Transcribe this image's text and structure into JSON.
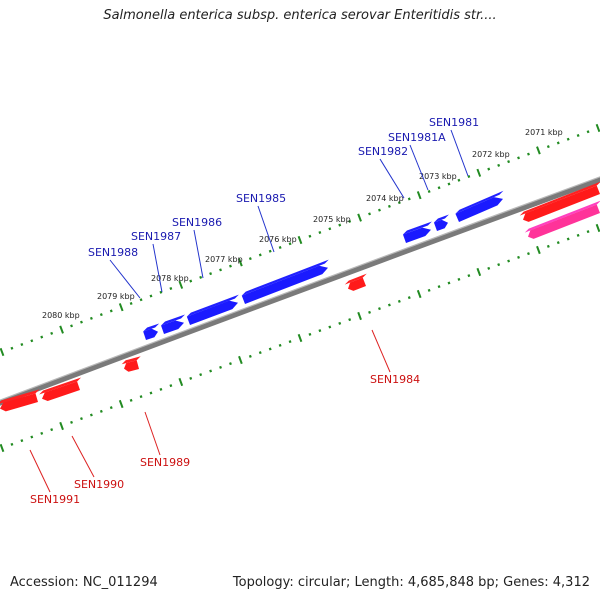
{
  "title": "Salmonella enterica subsp. enterica serovar Enteritidis str....",
  "accession": "Accession: NC_011294",
  "topology": "Topology: circular; Length: 4,685,848 bp; Genes: 4,312",
  "colors": {
    "forward": "#1a1aff",
    "reverse": "#ff1a1a",
    "rna": "#ff3399",
    "backbone": "#7a7a7a",
    "ticks": "#228b22",
    "label_forward": "#1a1ab0",
    "label_reverse": "#cc1111"
  },
  "kbp_labels": [
    "2080 kbp",
    "2079 kbp",
    "2078 kbp",
    "2077 kbp",
    "2076 kbp",
    "2075 kbp",
    "2074 kbp",
    "2073 kbp",
    "2072 kbp",
    "2071 kbp"
  ],
  "forward_genes": [
    "SEN1988",
    "SEN1987",
    "SEN1986",
    "SEN1985",
    "SEN1982",
    "SEN1981A",
    "SEN1981"
  ],
  "reverse_genes": [
    "SEN1991",
    "SEN1990",
    "SEN1989",
    "SEN1984"
  ]
}
